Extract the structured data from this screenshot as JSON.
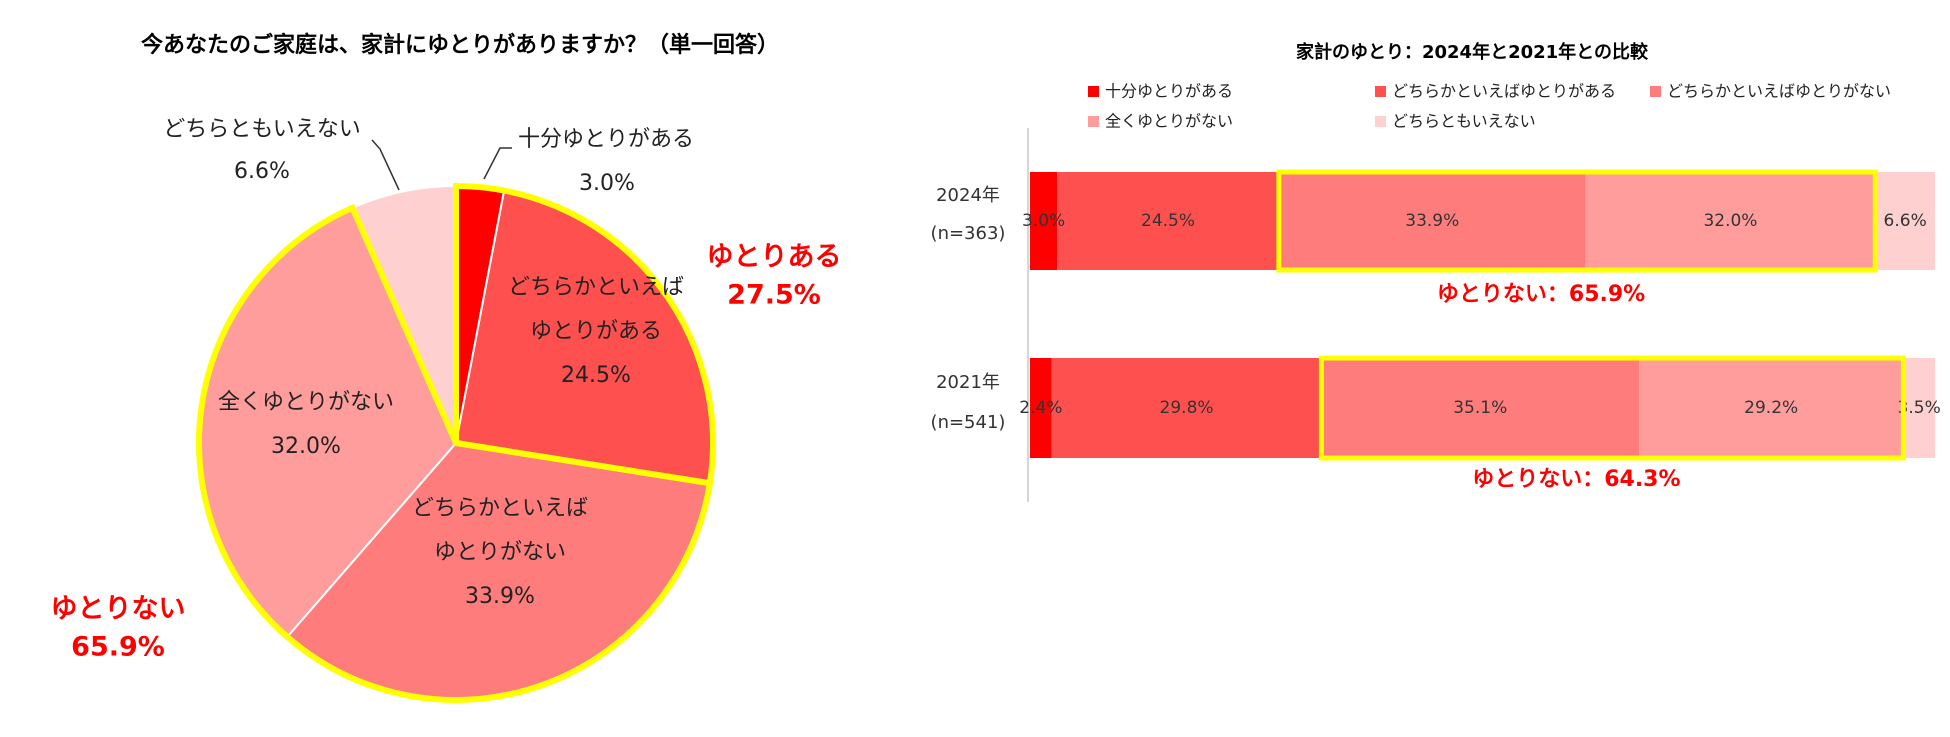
{
  "colors": {
    "c1": "#ff0000",
    "c2": "#ff5050",
    "c3": "#ff7c7c",
    "c4": "#ff9c9c",
    "c5": "#fed0d0",
    "highlight": "#ffff00",
    "emphasis": "#ff0000"
  },
  "chart_data": [
    {
      "type": "pie",
      "title": "今あなたのご家庭は、家計にゆとりがありますか？（単一回答）",
      "slices": [
        {
          "label": "十分ゆとりがある",
          "label_lines": [
            "十分ゆとりがある"
          ],
          "value": 3.0,
          "value_text": "3.0%",
          "color": "#ff0000"
        },
        {
          "label": "どちらかといえばゆとりがある",
          "label_lines": [
            "どちらかといえば",
            "ゆとりがある"
          ],
          "value": 24.5,
          "value_text": "24.5%",
          "color": "#ff5050"
        },
        {
          "label": "どちらかといえばゆとりがない",
          "label_lines": [
            "どちらかといえば",
            "ゆとりがない"
          ],
          "value": 33.9,
          "value_text": "33.9%",
          "color": "#ff7c7c"
        },
        {
          "label": "全くゆとりがない",
          "label_lines": [
            "全くゆとりがない"
          ],
          "value": 32.0,
          "value_text": "32.0%",
          "color": "#ff9c9c"
        },
        {
          "label": "どちらともいえない",
          "label_lines": [
            "どちらともいえない"
          ],
          "value": 6.6,
          "value_text": "6.6%",
          "color": "#fed0d0"
        }
      ],
      "annotations": [
        {
          "label": "ゆとりある",
          "value_text": "27.5%",
          "value": 27.5
        },
        {
          "label": "ゆとりない",
          "value_text": "65.9%",
          "value": 65.9
        }
      ]
    },
    {
      "type": "bar",
      "orientation": "horizontal",
      "stacked": true,
      "title": "家計のゆとり：2024年と2021年との比較",
      "categories": [
        {
          "year": "2024年",
          "n": "(n=363)"
        },
        {
          "year": "2021年",
          "n": "(n=541)"
        }
      ],
      "xlim": [
        0,
        100
      ],
      "series": [
        {
          "name": "十分ゆとりがある",
          "color": "#ff0000",
          "values": [
            3.0,
            2.4
          ],
          "labels": [
            "3.0%",
            "2.4%"
          ]
        },
        {
          "name": "どちらかといえばゆとりがある",
          "color": "#ff5050",
          "values": [
            24.5,
            29.8
          ],
          "labels": [
            "24.5%",
            "29.8%"
          ]
        },
        {
          "name": "どちらかといえばゆとりがない",
          "color": "#ff7c7c",
          "values": [
            33.9,
            35.1
          ],
          "labels": [
            "33.9%",
            "35.1%"
          ]
        },
        {
          "name": "全くゆとりがない",
          "color": "#ff9c9c",
          "values": [
            32.0,
            29.2
          ],
          "labels": [
            "32.0%",
            "29.2%"
          ]
        },
        {
          "name": "どちらともいえない",
          "color": "#fed0d0",
          "values": [
            6.6,
            3.5
          ],
          "labels": [
            "6.6%",
            "3.5%"
          ]
        }
      ],
      "annotations": [
        {
          "text": "ゆとりない：65.9%",
          "value": 65.9
        },
        {
          "text": "ゆとりない：64.3%",
          "value": 64.3
        }
      ],
      "legend_position": "top"
    }
  ]
}
